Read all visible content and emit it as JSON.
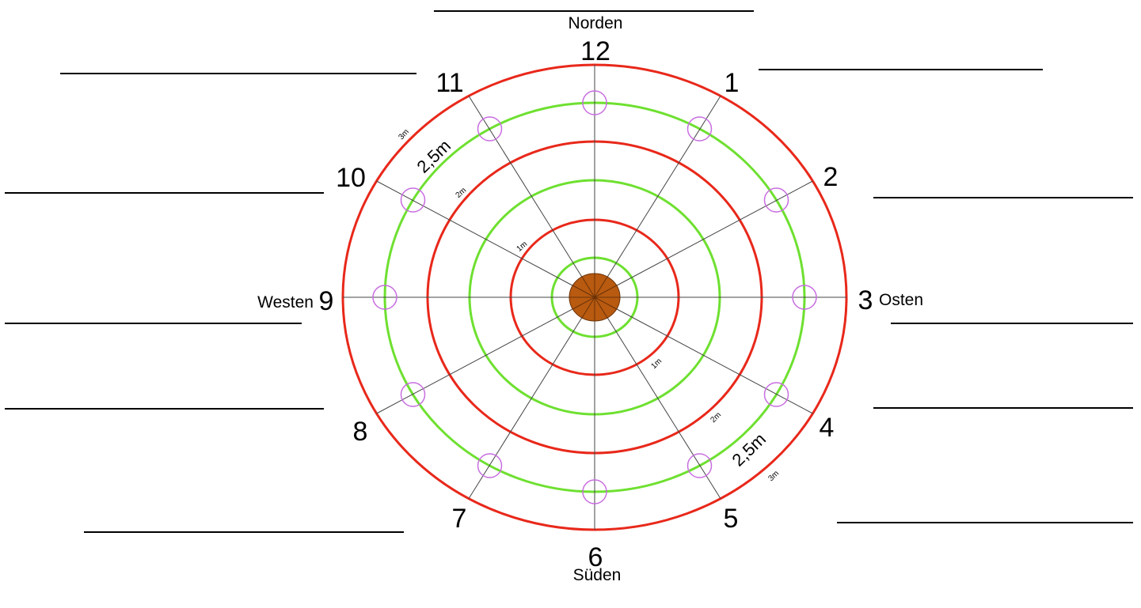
{
  "compass": {
    "north": "Norden",
    "south": "Süden",
    "west": "Westen",
    "east": "Osten"
  },
  "clock_numbers": [
    "12",
    "1",
    "2",
    "3",
    "4",
    "5",
    "6",
    "7",
    "8",
    "9",
    "10",
    "11"
  ],
  "ring_labels": {
    "r1m": "1m",
    "r2m": "2m",
    "r25m": "2,5m",
    "r3m": "3m"
  },
  "colors": {
    "red_ring": "#e8281a",
    "green_ring": "#6ee030",
    "marker": "#c86ee0",
    "trunk": "#b85a10",
    "spoke": "#444444",
    "answer_line": "#000000"
  }
}
